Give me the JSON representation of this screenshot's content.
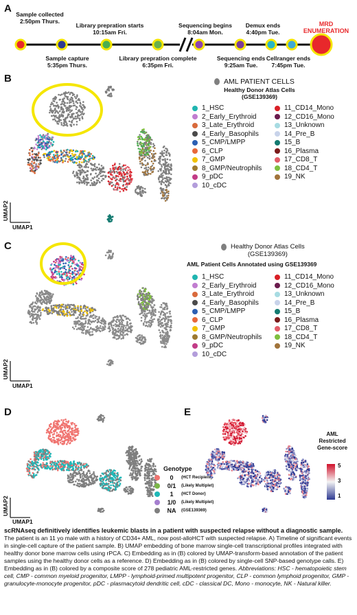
{
  "panelA": {
    "letter": "A",
    "events": [
      {
        "label": "Sample collected",
        "time": "2:50pm Thurs.",
        "color": "#e8282b"
      },
      {
        "label": "Sample capture",
        "time": "5:35pm Thurs.",
        "color": "#2e3a92"
      },
      {
        "label": "Library prepration starts",
        "time": "10:15am Fri.",
        "color": "#4caf50"
      },
      {
        "label": "Library prepration complete",
        "time": "6:35pm Fri.",
        "color": "#6ab04c"
      },
      {
        "label": "Sequencing begins",
        "time": "8:04am Mon.",
        "color": "#8e44ad"
      },
      {
        "label": "Sequencing ends",
        "time": "9:25am Tue.",
        "color": "#7d3c98"
      },
      {
        "label": "Demux ends",
        "time": "4:40pm Tue.",
        "color": "#29b6c6"
      },
      {
        "label": "Cellranger ends",
        "time": "7:45pm Tue.",
        "color": "#3fa9d6"
      },
      {
        "label": "MRD ENUMERATION",
        "time": "",
        "color": "#e8282b"
      }
    ],
    "mrd_line1": "MRD",
    "mrd_line2": "ENUMERATION"
  },
  "panelB": {
    "letter": "B",
    "aml_label": "AML PATIENT CELLS",
    "atlas_line1": "Healthy Donor Atlas Cells",
    "atlas_line2": "(GSE139369)",
    "xlabel": "UMAP1",
    "ylabel": "UMAP2"
  },
  "panelC": {
    "letter": "C",
    "atlas_line1": "Healthy Donor Atlas Cells",
    "atlas_line2": "(GSE139369)",
    "annot_label": "AML Patient Cells Annotated using GSE139369",
    "xlabel": "UMAP1",
    "ylabel": "UMAP2"
  },
  "cell_types": [
    {
      "label": "1_HSC",
      "color": "#1fb5b0"
    },
    {
      "label": "2_Early_Erythroid",
      "color": "#c17dd0"
    },
    {
      "label": "3_Late_Erythroid",
      "color": "#d96a3c"
    },
    {
      "label": "4_Early_Basophils",
      "color": "#4a4a4a"
    },
    {
      "label": "5_CMP/LMPP",
      "color": "#2c5fb3"
    },
    {
      "label": "6_CLP",
      "color": "#e8683a"
    },
    {
      "label": "7_GMP",
      "color": "#f2c200"
    },
    {
      "label": "8_GMP/Neutrophils",
      "color": "#9d7a30"
    },
    {
      "label": "9_pDC",
      "color": "#c23b86"
    },
    {
      "label": "10_cDC",
      "color": "#b39ddb"
    },
    {
      "label": "11_CD14_Mono",
      "color": "#d91f26"
    },
    {
      "label": "12_CD16_Mono",
      "color": "#6a1b4d"
    },
    {
      "label": "13_Unknown",
      "color": "#a7dbe2"
    },
    {
      "label": "14_Pre_B",
      "color": "#c8d3ea"
    },
    {
      "label": "15_B",
      "color": "#137a70"
    },
    {
      "label": "16_Plasma",
      "color": "#7b1a1a"
    },
    {
      "label": "17_CD8_T",
      "color": "#e35d68"
    },
    {
      "label": "18_CD4_T",
      "color": "#7fbf3f"
    },
    {
      "label": "19_NK",
      "color": "#a1743b"
    }
  ],
  "panelD": {
    "letter": "D",
    "legend_title": "Genotype",
    "xlabel": "UMAP1",
    "ylabel": "UMAP2",
    "genotypes": [
      {
        "code": "0",
        "note": "(HCT Recipient)",
        "color": "#f07470"
      },
      {
        "code": "0/1",
        "note": "(Likely Multiplet)",
        "color": "#7ab648"
      },
      {
        "code": "1",
        "note": "(HCT Donor)",
        "color": "#1fb8b8"
      },
      {
        "code": "1/0",
        "note": "(Likely Multiplet)",
        "color": "#a57fcf"
      },
      {
        "code": "NA",
        "note": "(GSE139369)",
        "color": "#7f7f7f"
      }
    ]
  },
  "panelE": {
    "letter": "E",
    "title_line1": "AML",
    "title_line2": "Restricted",
    "title_line3": "Gene-score",
    "ticks": [
      "5",
      "3",
      "1"
    ]
  },
  "caption": {
    "title": "scRNAseq definitively identifies leukemic blasts in a patient with suspected relapse without a diagnostic sample.",
    "body": " The patient is an 11 yo male with a history of CD34+ AML, now post-alloHCT with suspected relapse. A) Timeline of significant events in single-cell capture of the patient sample. B) UMAP embedding of bone marrow single-cell transcriptional profiles integrated with healthy donor bone marrow cells using rPCA. C) Embedding as in (B) colored by UMAP-transform-based annotation of the patient samples using the healthy donor cells as a reference. D) Embedding as in (B) colored by single-cell SNP-based genotype calls. E) Embedding as in (B) colored by a composite score of 278 pediatric AML-restricted genes. ",
    "abbrev": "Abbreviations: HSC - hematopoietic stem cell, CMP - common myeloid progenitor, LMPP - lymphoid-primed multipotent progenitor, CLP - common lymphoid progenitor, GMP - granulocyte-monocyte progenitor, pDC - plasmacytoid dendritic cell, cDC - classical DC, Mono - monocyte, NK - Natural killer."
  }
}
